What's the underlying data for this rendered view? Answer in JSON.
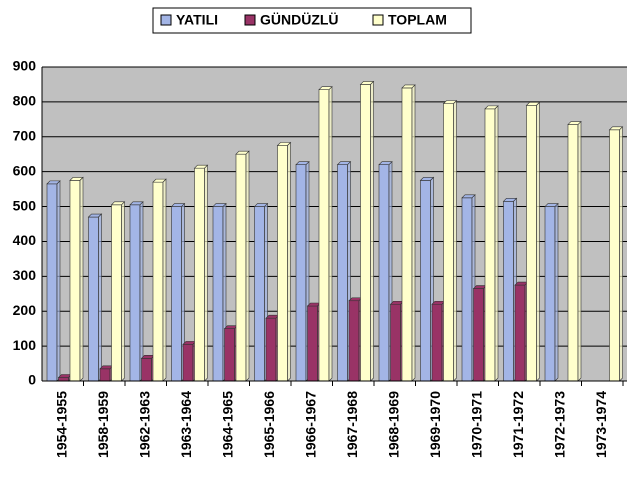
{
  "chart_data": {
    "type": "bar",
    "categories": [
      "1954-1955",
      "1958-1959",
      "1962-1963",
      "1963-1964",
      "1964-1965",
      "1965-1966",
      "1966-1967",
      "1967-1968",
      "1968-1969",
      "1969-1970",
      "1970-1971",
      "1971-1972",
      "1972-1973",
      "1973-1974"
    ],
    "series": [
      {
        "name": "YATILI",
        "color": "#a3b5e6",
        "values": [
          565,
          470,
          505,
          500,
          500,
          500,
          620,
          620,
          620,
          575,
          525,
          515,
          500,
          null
        ]
      },
      {
        "name": "GÜNDÜZLÜ",
        "color": "#993366",
        "values": [
          10,
          35,
          65,
          105,
          150,
          180,
          215,
          230,
          220,
          220,
          265,
          275,
          null,
          null
        ]
      },
      {
        "name": "TOPLAM",
        "color": "#ffffcc",
        "values": [
          575,
          505,
          570,
          610,
          650,
          675,
          835,
          850,
          840,
          795,
          780,
          790,
          735,
          720
        ]
      }
    ],
    "ylim": [
      0,
      900
    ],
    "yticks": [
      0,
      100,
      200,
      300,
      400,
      500,
      600,
      700,
      800,
      900
    ],
    "grid": true,
    "legend": "top"
  }
}
